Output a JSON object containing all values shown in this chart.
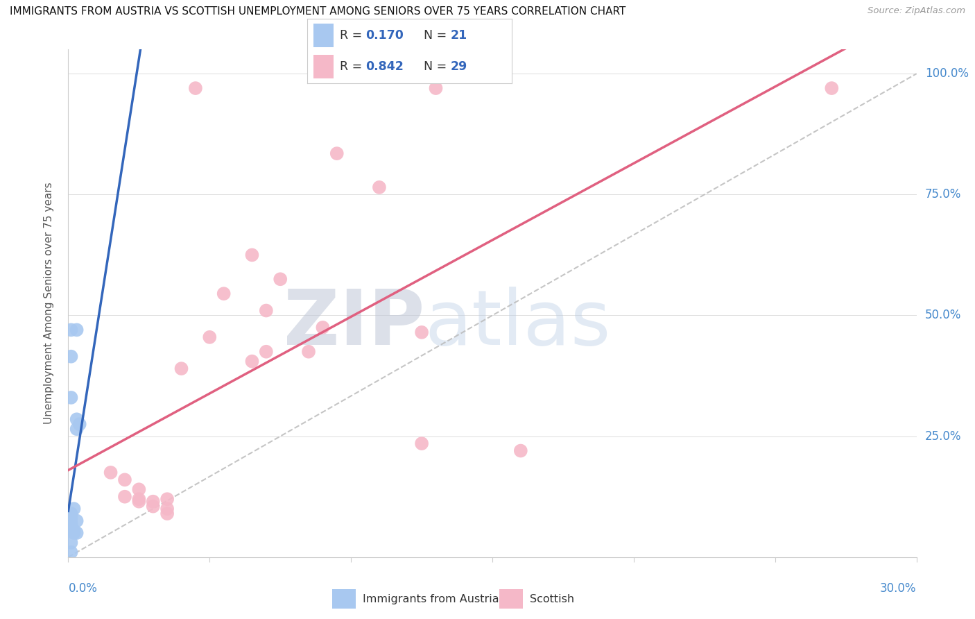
{
  "title": "IMMIGRANTS FROM AUSTRIA VS SCOTTISH UNEMPLOYMENT AMONG SENIORS OVER 75 YEARS CORRELATION CHART",
  "source": "Source: ZipAtlas.com",
  "ylabel": "Unemployment Among Seniors over 75 years",
  "legend_blue_r": "0.170",
  "legend_blue_n": "21",
  "legend_pink_r": "0.842",
  "legend_pink_n": "29",
  "blue_color": "#a8c8f0",
  "pink_color": "#f5b8c8",
  "blue_line_color": "#3366bb",
  "pink_line_color": "#e06080",
  "diag_color": "#bbbbbb",
  "watermark_color": "#d0dff0",
  "blue_scatter": [
    [
      0.001,
      0.47
    ],
    [
      0.003,
      0.47
    ],
    [
      0.001,
      0.415
    ],
    [
      0.003,
      0.285
    ],
    [
      0.003,
      0.265
    ],
    [
      0.001,
      0.33
    ],
    [
      0.004,
      0.275
    ],
    [
      0.002,
      0.1
    ],
    [
      0.001,
      0.09
    ],
    [
      0.001,
      0.085
    ],
    [
      0.001,
      0.08
    ],
    [
      0.003,
      0.075
    ],
    [
      0.001,
      0.07
    ],
    [
      0.001,
      0.065
    ],
    [
      0.001,
      0.06
    ],
    [
      0.001,
      0.055
    ],
    [
      0.002,
      0.055
    ],
    [
      0.002,
      0.05
    ],
    [
      0.003,
      0.05
    ],
    [
      0.001,
      0.03
    ],
    [
      0.001,
      0.01
    ]
  ],
  "pink_scatter": [
    [
      0.045,
      0.97
    ],
    [
      0.13,
      0.97
    ],
    [
      0.27,
      0.97
    ],
    [
      0.095,
      0.835
    ],
    [
      0.11,
      0.765
    ],
    [
      0.065,
      0.625
    ],
    [
      0.075,
      0.575
    ],
    [
      0.055,
      0.545
    ],
    [
      0.07,
      0.51
    ],
    [
      0.09,
      0.475
    ],
    [
      0.05,
      0.455
    ],
    [
      0.07,
      0.425
    ],
    [
      0.085,
      0.425
    ],
    [
      0.065,
      0.405
    ],
    [
      0.04,
      0.39
    ],
    [
      0.125,
      0.465
    ],
    [
      0.125,
      0.235
    ],
    [
      0.16,
      0.22
    ],
    [
      0.015,
      0.175
    ],
    [
      0.02,
      0.16
    ],
    [
      0.025,
      0.14
    ],
    [
      0.02,
      0.125
    ],
    [
      0.025,
      0.12
    ],
    [
      0.035,
      0.12
    ],
    [
      0.025,
      0.115
    ],
    [
      0.03,
      0.115
    ],
    [
      0.03,
      0.105
    ],
    [
      0.035,
      0.1
    ],
    [
      0.035,
      0.09
    ]
  ],
  "xlim": [
    0.0,
    0.3
  ],
  "ylim": [
    0.0,
    1.05
  ],
  "xtick_positions": [
    0.0,
    0.05,
    0.1,
    0.15,
    0.2,
    0.25,
    0.3
  ],
  "ytick_positions": [
    0.0,
    0.25,
    0.5,
    0.75,
    1.0
  ]
}
